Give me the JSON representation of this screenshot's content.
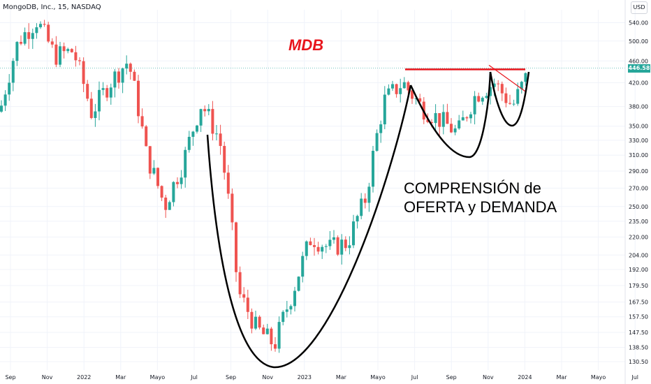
{
  "header": {
    "symbol_line": "MongoDB, Inc., 15, NASDAQ",
    "currency_button": "USD"
  },
  "annotations": {
    "ticker_label": "MDB",
    "note_line1": "COMPRENSIÓN de",
    "note_line2": "OFERTA y DEMANDA"
  },
  "last_price": "446.58",
  "colors": {
    "up": "#26a69a",
    "down": "#ef5350",
    "resistance": "#e8151c",
    "pattern": "#000000",
    "last_price_line": "#26a69a"
  },
  "chart_data": {
    "type": "candlestick",
    "y_scale": "log",
    "ylim": [
      126,
      570
    ],
    "y_ticks": [
      "540.00",
      "500.00",
      "460.00",
      "420.00",
      "380.00",
      "350.00",
      "330.00",
      "310.00",
      "290.00",
      "270.00",
      "250.00",
      "235.00",
      "220.00",
      "204.00",
      "192.00",
      "179.50",
      "167.50",
      "157.50",
      "147.50",
      "138.50",
      "130.50"
    ],
    "x_ticks": [
      "Sep",
      "Nov",
      "2022",
      "Mar",
      "Mayo",
      "Jul",
      "Sep",
      "Nov",
      "2023",
      "Mar",
      "Mayo",
      "Jul",
      "Sep",
      "Nov",
      "2024",
      "Mar",
      "Mayo",
      "Jul"
    ],
    "resistance_price": 444,
    "price_path": [
      [
        "Sep",
        372
      ],
      [
        "Oct",
        500
      ],
      [
        "Nov",
        545
      ],
      [
        "Dec",
        470
      ],
      [
        "2022",
        480
      ],
      [
        "Feb",
        370
      ],
      [
        "Mar",
        420
      ],
      [
        "Apr",
        460
      ],
      [
        "May",
        310
      ],
      [
        "Jun",
        250
      ],
      [
        "Jul",
        300
      ],
      [
        "Aug",
        385
      ],
      [
        "Sep",
        330
      ],
      [
        "Oct",
        175
      ],
      [
        "Nov",
        150
      ],
      [
        "Dec",
        140
      ],
      [
        "2023",
        175
      ],
      [
        "Feb",
        220
      ],
      [
        "Mar",
        210
      ],
      [
        "Apr",
        215
      ],
      [
        "May",
        260
      ],
      [
        "Jun",
        390
      ],
      [
        "Jul",
        420
      ],
      [
        "Aug",
        380
      ],
      [
        "Sep",
        360
      ],
      [
        "Oct",
        340
      ],
      [
        "Nov",
        400
      ],
      [
        "Dec",
        420
      ],
      [
        "2024",
        380
      ],
      [
        "Feb",
        446.58
      ]
    ]
  }
}
